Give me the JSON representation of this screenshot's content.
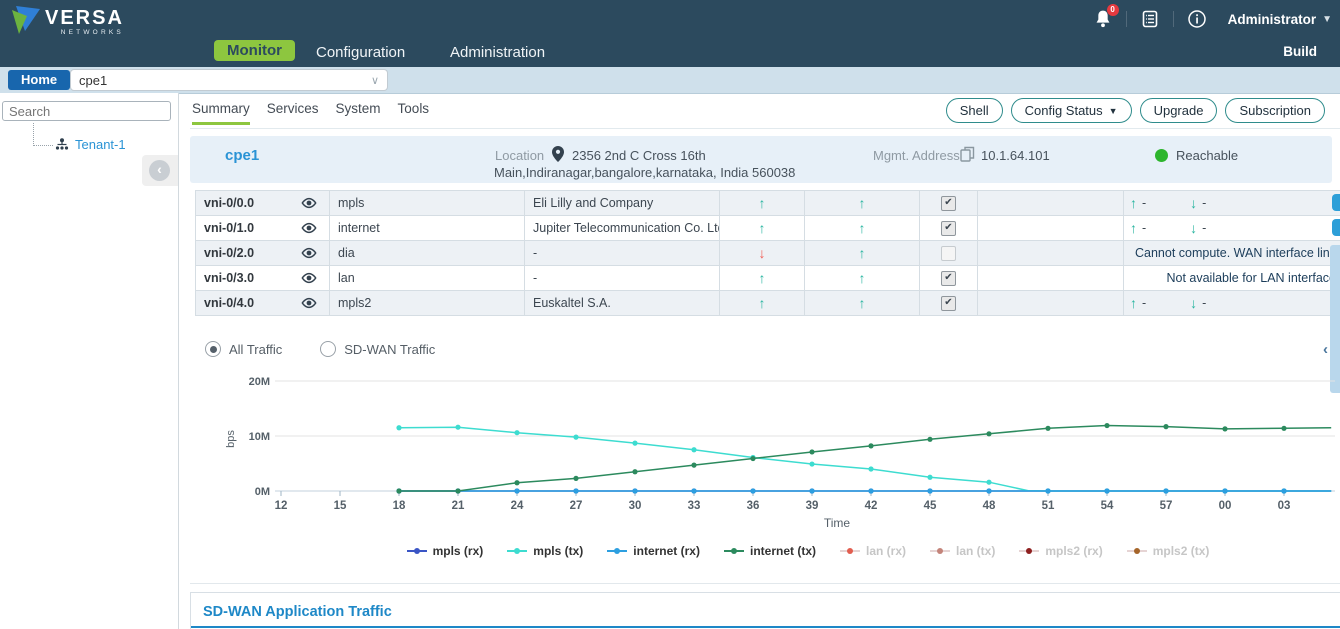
{
  "header": {
    "brand": "VERSA",
    "brand_sub": "NETWORKS",
    "nav": [
      {
        "label": "Monitor",
        "active": true
      },
      {
        "label": "Configuration",
        "active": false
      },
      {
        "label": "Administration",
        "active": false
      }
    ],
    "notification_count": "0",
    "user": "Administrator",
    "build": "Build"
  },
  "toolbar": {
    "home": "Home",
    "device": "cpe1"
  },
  "sidebar": {
    "search_placeholder": "Search",
    "tenant": "Tenant-1"
  },
  "tabs": [
    {
      "label": "Summary",
      "active": true
    },
    {
      "label": "Services",
      "active": false
    },
    {
      "label": "System",
      "active": false
    },
    {
      "label": "Tools",
      "active": false
    }
  ],
  "actions": [
    {
      "label": "Shell",
      "caret": false
    },
    {
      "label": "Config Status",
      "caret": true
    },
    {
      "label": "Upgrade",
      "caret": false
    },
    {
      "label": "Subscription",
      "caret": false
    }
  ],
  "device": {
    "name": "cpe1",
    "location_label": "Location",
    "address_line1": "2356 2nd C Cross 16th",
    "address_line2": "Main,Indiranagar,bangalore,karnataka, India 560038",
    "mgmt_label": "Mgmt. Address",
    "mgmt_ip": "10.1.64.101",
    "status": "Reachable"
  },
  "interfaces": [
    {
      "name": "vni-0/0.0",
      "network": "mpls",
      "provider": "Eli Lilly and Company",
      "dir1": "up",
      "dir2": "up",
      "checked": true,
      "stats": true
    },
    {
      "name": "vni-0/1.0",
      "network": "internet",
      "provider": "Jupiter Telecommunication Co. Ltd.",
      "dir1": "up",
      "dir2": "up",
      "checked": true,
      "stats": true
    },
    {
      "name": "vni-0/2.0",
      "network": "dia",
      "provider": "-",
      "dir1": "down",
      "dir2": "up",
      "checked": false,
      "stats": false,
      "message": "Cannot compute. WAN interface link"
    },
    {
      "name": "vni-0/3.0",
      "network": "lan",
      "provider": "-",
      "dir1": "up",
      "dir2": "up",
      "checked": true,
      "stats": false,
      "message": "Not available for LAN interface"
    },
    {
      "name": "vni-0/4.0",
      "network": "mpls2",
      "provider": "Euskaltel S.A.",
      "dir1": "up",
      "dir2": "up",
      "checked": true,
      "stats": true
    }
  ],
  "stats_up_value": "-",
  "stats_down_value": "-",
  "traffic_radios": [
    {
      "label": "All Traffic",
      "selected": true
    },
    {
      "label": "SD-WAN Traffic",
      "selected": false
    }
  ],
  "chart_data": {
    "type": "line",
    "title": "",
    "xlabel": "Time",
    "ylabel": "bps",
    "y_ticks": [
      "0M",
      "10M",
      "20M"
    ],
    "ylim_mbps": [
      0,
      20
    ],
    "x_ticks": [
      "12",
      "15",
      "18",
      "21",
      "24",
      "27",
      "30",
      "33",
      "36",
      "39",
      "42",
      "45",
      "48",
      "51",
      "54",
      "57",
      "00",
      "03"
    ],
    "x_start_value": 12,
    "x_step": 3,
    "grid": true,
    "legend_position": "bottom",
    "series": [
      {
        "name": "mpls (rx)",
        "color": "#3a55c5",
        "disabled": false,
        "x": [
          18,
          21,
          24,
          27,
          30,
          33,
          36,
          39,
          42,
          45,
          48,
          51,
          54,
          57,
          60,
          63,
          65.4
        ],
        "values_mbps": [
          0,
          0,
          0,
          0,
          0,
          0,
          0,
          0,
          0,
          0,
          0,
          0,
          0,
          0,
          0,
          0,
          0
        ]
      },
      {
        "name": "mpls (tx)",
        "color": "#3ddcd0",
        "disabled": false,
        "x": [
          18,
          21,
          24,
          27,
          30,
          33,
          36,
          39,
          42,
          45,
          48,
          50,
          51,
          54,
          57,
          60,
          63,
          65.4
        ],
        "values_mbps": [
          11.5,
          11.6,
          10.6,
          9.8,
          8.7,
          7.5,
          6.1,
          4.9,
          4.0,
          2.5,
          1.6,
          0.05,
          0,
          0,
          0,
          0,
          0,
          0
        ]
      },
      {
        "name": "internet (rx)",
        "color": "#2d9fe0",
        "disabled": false,
        "x": [
          18,
          21,
          24,
          27,
          30,
          33,
          36,
          39,
          42,
          45,
          48,
          51,
          54,
          57,
          60,
          63,
          65.4
        ],
        "values_mbps": [
          0,
          0,
          0,
          0,
          0,
          0,
          0,
          0,
          0,
          0,
          0,
          0,
          0,
          0,
          0,
          0,
          0
        ]
      },
      {
        "name": "internet (tx)",
        "color": "#2c8a5e",
        "disabled": false,
        "x": [
          18,
          21,
          24,
          27,
          30,
          33,
          36,
          39,
          42,
          45,
          48,
          51,
          54,
          57,
          60,
          63,
          65.4
        ],
        "values_mbps": [
          0,
          0,
          1.5,
          2.3,
          3.5,
          4.7,
          5.9,
          7.1,
          8.2,
          9.4,
          10.4,
          11.4,
          11.9,
          11.7,
          11.3,
          11.4,
          11.5
        ]
      },
      {
        "name": "lan (rx)",
        "color": "#e25d4f",
        "disabled": true,
        "x": [],
        "values_mbps": []
      },
      {
        "name": "lan (tx)",
        "color": "#c4847a",
        "disabled": true,
        "x": [],
        "values_mbps": []
      },
      {
        "name": "mpls2 (rx)",
        "color": "#8e1f1f",
        "disabled": true,
        "x": [],
        "values_mbps": []
      },
      {
        "name": "mpls2 (tx)",
        "color": "#a5652a",
        "disabled": true,
        "x": [],
        "values_mbps": []
      }
    ]
  },
  "sdwan": {
    "title": "SD-WAN Application Traffic"
  }
}
